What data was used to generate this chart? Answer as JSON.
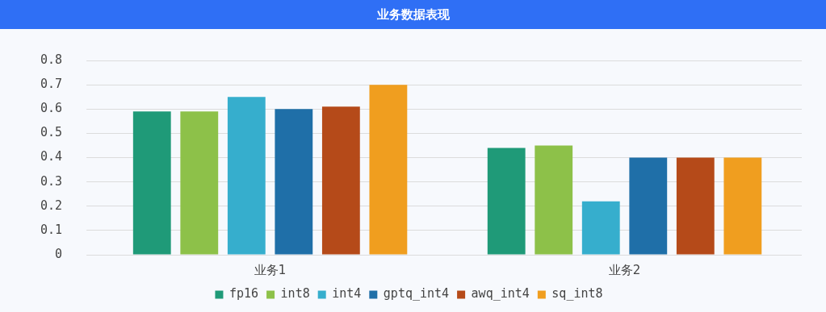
{
  "chart_data": {
    "type": "bar",
    "title": "业务数据表现",
    "categories": [
      "业务1",
      "业务2"
    ],
    "series": [
      {
        "name": "fp16",
        "color": "#1f9a78",
        "values": [
          0.59,
          0.44
        ]
      },
      {
        "name": "int8",
        "color": "#8dc149",
        "values": [
          0.59,
          0.45
        ]
      },
      {
        "name": "int4",
        "color": "#36aecd",
        "values": [
          0.65,
          0.22
        ]
      },
      {
        "name": "gptq_int4",
        "color": "#1f6fa8",
        "values": [
          0.6,
          0.4
        ]
      },
      {
        "name": "awq_int4",
        "color": "#b54a19",
        "values": [
          0.61,
          0.4
        ]
      },
      {
        "name": "sq_int8",
        "color": "#f09e1f",
        "values": [
          0.7,
          0.4
        ]
      }
    ],
    "ylim": [
      0,
      0.8
    ],
    "yticks": [
      0,
      0.1,
      0.2,
      0.3,
      0.4,
      0.5,
      0.6,
      0.7,
      0.8
    ],
    "grid": "y",
    "legend": "bottom"
  }
}
